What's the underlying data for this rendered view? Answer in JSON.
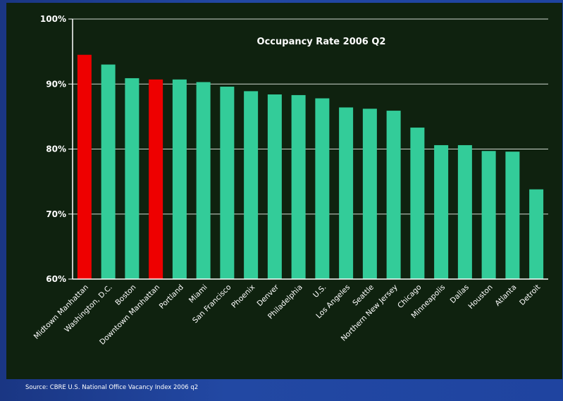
{
  "source_note": "Source: CBRE U.S. National Office Vacancy Index 2006 q2",
  "chart_data": {
    "type": "bar",
    "title": "Occupancy Rate 2006 Q2",
    "ylim": [
      60,
      100
    ],
    "yticks": [
      "60%",
      "70%",
      "80%",
      "90%",
      "100%"
    ],
    "ytick_values": [
      60,
      70,
      80,
      90,
      100
    ],
    "grid": true,
    "categories": [
      "Midtown Manhattan",
      "Washington, D.C.",
      "Boston",
      "Downtown Manhattan",
      "Portland",
      "Miami",
      "San Francisco",
      "Phoenix",
      "Denver",
      "Philadelphia",
      "U.S.",
      "Los Angeles",
      "Seattle",
      "Northern New Jersey",
      "Chicago",
      "Minneapolis",
      "Dallas",
      "Houston",
      "Atlanta",
      "Detroit"
    ],
    "values": [
      94.5,
      93.0,
      90.9,
      90.7,
      90.7,
      90.3,
      89.6,
      88.9,
      88.4,
      88.3,
      87.8,
      86.4,
      86.2,
      85.9,
      83.3,
      80.6,
      80.6,
      79.7,
      79.6,
      73.8
    ],
    "highlighted": [
      "Midtown Manhattan",
      "Downtown Manhattan"
    ],
    "colors": {
      "bar": "#33cc99",
      "highlight": "#ee0000",
      "background": "#0f220f",
      "axis": "#ffffff",
      "frame": "#1f44a0"
    }
  }
}
